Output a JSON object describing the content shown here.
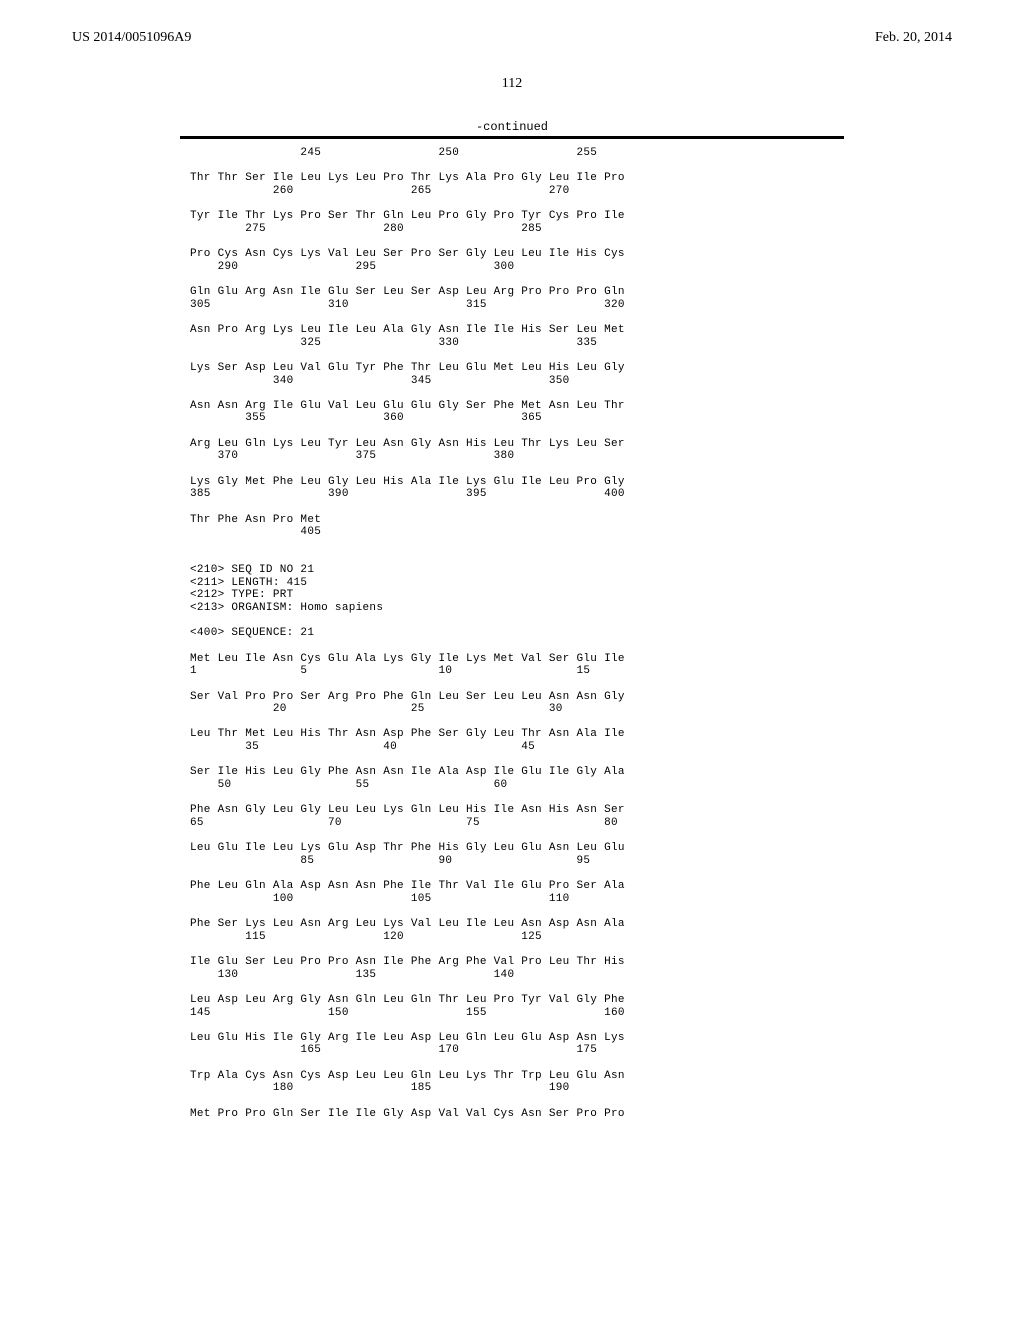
{
  "header": {
    "publication": "US 2014/0051096A9",
    "date": "Feb. 20, 2014"
  },
  "page_number": "112",
  "continued_label": "-continued",
  "sequence_lines": [
    "                245                 250                 255",
    "",
    "Thr Thr Ser Ile Leu Lys Leu Pro Thr Lys Ala Pro Gly Leu Ile Pro",
    "            260                 265                 270",
    "",
    "Tyr Ile Thr Lys Pro Ser Thr Gln Leu Pro Gly Pro Tyr Cys Pro Ile",
    "        275                 280                 285",
    "",
    "Pro Cys Asn Cys Lys Val Leu Ser Pro Ser Gly Leu Leu Ile His Cys",
    "    290                 295                 300",
    "",
    "Gln Glu Arg Asn Ile Glu Ser Leu Ser Asp Leu Arg Pro Pro Pro Gln",
    "305                 310                 315                 320",
    "",
    "Asn Pro Arg Lys Leu Ile Leu Ala Gly Asn Ile Ile His Ser Leu Met",
    "                325                 330                 335",
    "",
    "Lys Ser Asp Leu Val Glu Tyr Phe Thr Leu Glu Met Leu His Leu Gly",
    "            340                 345                 350",
    "",
    "Asn Asn Arg Ile Glu Val Leu Glu Glu Gly Ser Phe Met Asn Leu Thr",
    "        355                 360                 365",
    "",
    "Arg Leu Gln Lys Leu Tyr Leu Asn Gly Asn His Leu Thr Lys Leu Ser",
    "    370                 375                 380",
    "",
    "Lys Gly Met Phe Leu Gly Leu His Ala Ile Lys Glu Ile Leu Pro Gly",
    "385                 390                 395                 400",
    "",
    "Thr Phe Asn Pro Met",
    "                405",
    "",
    "",
    "<210> SEQ ID NO 21",
    "<211> LENGTH: 415",
    "<212> TYPE: PRT",
    "<213> ORGANISM: Homo sapiens",
    "",
    "<400> SEQUENCE: 21",
    "",
    "Met Leu Ile Asn Cys Glu Ala Lys Gly Ile Lys Met Val Ser Glu Ile",
    "1               5                   10                  15",
    "",
    "Ser Val Pro Pro Ser Arg Pro Phe Gln Leu Ser Leu Leu Asn Asn Gly",
    "            20                  25                  30",
    "",
    "Leu Thr Met Leu His Thr Asn Asp Phe Ser Gly Leu Thr Asn Ala Ile",
    "        35                  40                  45",
    "",
    "Ser Ile His Leu Gly Phe Asn Asn Ile Ala Asp Ile Glu Ile Gly Ala",
    "    50                  55                  60",
    "",
    "Phe Asn Gly Leu Gly Leu Leu Lys Gln Leu His Ile Asn His Asn Ser",
    "65                  70                  75                  80",
    "",
    "Leu Glu Ile Leu Lys Glu Asp Thr Phe His Gly Leu Glu Asn Leu Glu",
    "                85                  90                  95",
    "",
    "Phe Leu Gln Ala Asp Asn Asn Phe Ile Thr Val Ile Glu Pro Ser Ala",
    "            100                 105                 110",
    "",
    "Phe Ser Lys Leu Asn Arg Leu Lys Val Leu Ile Leu Asn Asp Asn Ala",
    "        115                 120                 125",
    "",
    "Ile Glu Ser Leu Pro Pro Asn Ile Phe Arg Phe Val Pro Leu Thr His",
    "    130                 135                 140",
    "",
    "Leu Asp Leu Arg Gly Asn Gln Leu Gln Thr Leu Pro Tyr Val Gly Phe",
    "145                 150                 155                 160",
    "",
    "Leu Glu His Ile Gly Arg Ile Leu Asp Leu Gln Leu Glu Asp Asn Lys",
    "                165                 170                 175",
    "",
    "Trp Ala Cys Asn Cys Asp Leu Leu Gln Leu Lys Thr Trp Leu Glu Asn",
    "            180                 185                 190",
    "",
    "Met Pro Pro Gln Ser Ile Ile Gly Asp Val Val Cys Asn Ser Pro Pro"
  ]
}
